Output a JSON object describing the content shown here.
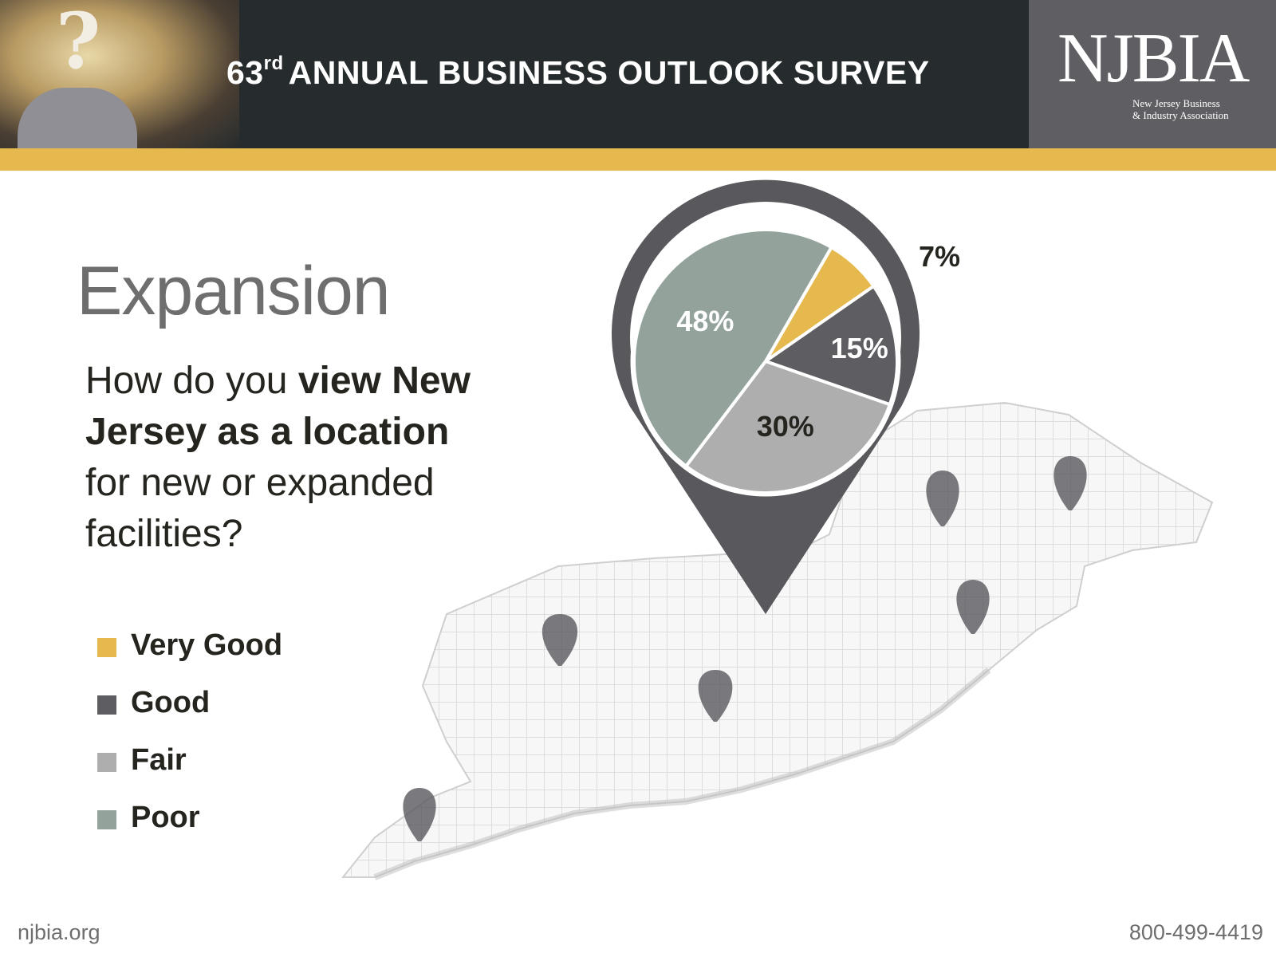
{
  "header": {
    "title_number": "63",
    "title_suffix": "rd",
    "title_rest": "ANNUAL BUSINESS OUTLOOK SURVEY",
    "logo_word": "NJBIA",
    "logo_line1": "New Jersey Business",
    "logo_line2": "& Industry Association"
  },
  "slide": {
    "section_title": "Expansion",
    "question_parts": [
      "How do you ",
      "view New Jersey as a location",
      " for new or expanded facilities?"
    ]
  },
  "footer": {
    "website": "njbia.org",
    "phone": "800-499-4419"
  },
  "chart_data": {
    "type": "pie",
    "categories": [
      "Very Good",
      "Good",
      "Fair",
      "Poor"
    ],
    "values": [
      7,
      15,
      30,
      48
    ],
    "data_labels": [
      "7%",
      "15%",
      "30%",
      "48%"
    ],
    "colors": [
      "#e6b94f",
      "#5e5d61",
      "#aeaeae",
      "#93a39c"
    ],
    "legend_position": "left"
  },
  "colors": {
    "header_bg": "#262b2d",
    "accent_gold": "#e6b94f",
    "pin": "#59585c"
  }
}
